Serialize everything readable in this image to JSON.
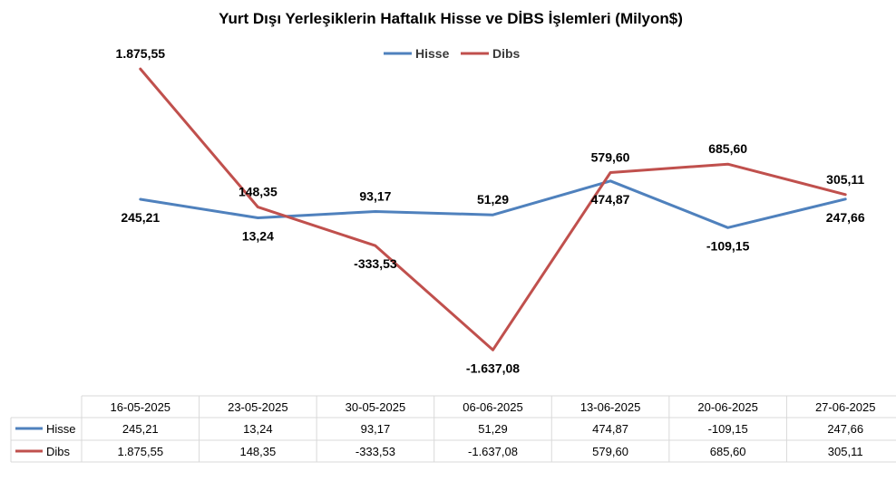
{
  "chart_data": {
    "type": "line",
    "title": "Yurt Dışı Yerleşiklerin Haftalık Hisse ve DİBS İşlemleri (Milyon$)",
    "categories": [
      "16-05-2025",
      "23-05-2025",
      "30-05-2025",
      "06-06-2025",
      "13-06-2025",
      "20-06-2025",
      "27-06-2025"
    ],
    "series": [
      {
        "name": "Hisse",
        "color": "#4f81bd",
        "values": [
          245.21,
          13.24,
          93.17,
          51.29,
          474.87,
          -109.15,
          247.66
        ],
        "labels": [
          "245,21",
          "13,24",
          "93,17",
          "51,29",
          "474,87",
          "-109,15",
          "247,66"
        ]
      },
      {
        "name": "Dibs",
        "color": "#c0504d",
        "values": [
          1875.55,
          148.35,
          -333.53,
          -1637.08,
          579.6,
          685.6,
          305.11
        ],
        "labels": [
          "1.875,55",
          "148,35",
          "-333,53",
          "-1.637,08",
          "579,60",
          "685,60",
          "305,11"
        ]
      }
    ],
    "ylim": [
      -2000,
      2000
    ],
    "grid": false,
    "legend": "top-center",
    "data_table": true
  }
}
